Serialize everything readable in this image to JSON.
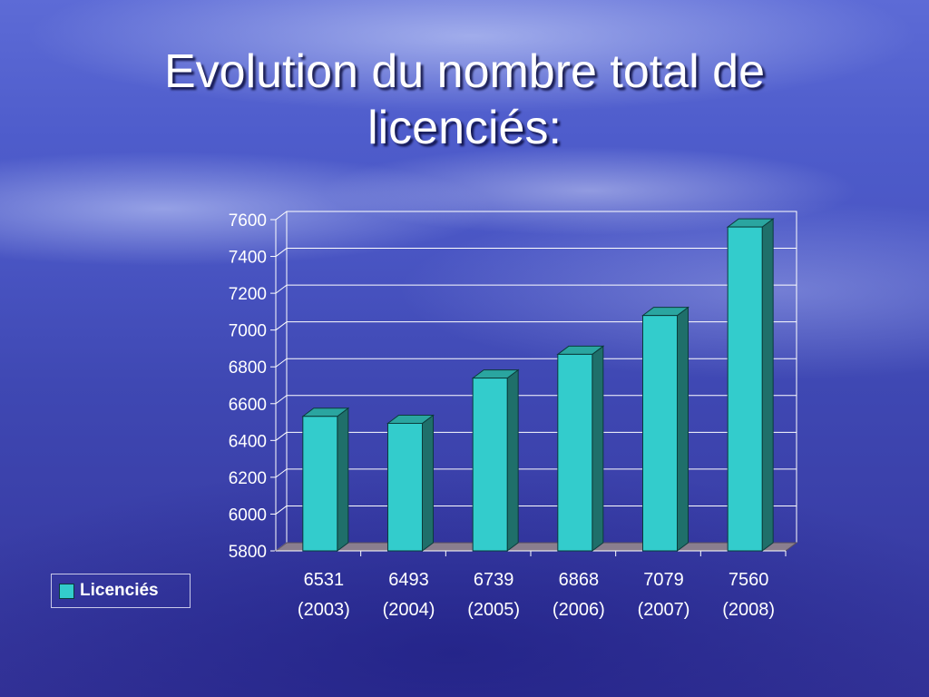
{
  "slide": {
    "title_line1": "Evolution du nombre total de",
    "title_line2": "licenciés:"
  },
  "chart_data": {
    "type": "bar",
    "categories": [
      "6531\n(2003)",
      "6493\n(2004)",
      "6739\n(2005)",
      "6868\n(2006)",
      "7079\n(2007)",
      "7560\n(2008)"
    ],
    "category_lines": [
      [
        "6531",
        "(2003)"
      ],
      [
        "6493",
        "(2004)"
      ],
      [
        "6739",
        "(2005)"
      ],
      [
        "6868",
        "(2006)"
      ],
      [
        "7079",
        "(2007)"
      ],
      [
        "7560",
        "(2008)"
      ]
    ],
    "series": [
      {
        "name": "Licenciés",
        "values": [
          6531,
          6493,
          6739,
          6868,
          7079,
          7560
        ]
      }
    ],
    "ylim": [
      5800,
      7600
    ],
    "yticks": [
      7600,
      7400,
      7200,
      7000,
      6800,
      6600,
      6400,
      6200,
      6000,
      5800
    ],
    "grid": true,
    "legend_position": "left",
    "bar_style": "3d-column",
    "colors": {
      "bar_front": "#33cccc",
      "bar_side": "#1f6f6a",
      "bar_top": "#2aa5a0",
      "floor": "#8a7e8e",
      "grid": "#ffffff",
      "text": "#ffffff"
    }
  },
  "legend": {
    "label": "Licenciés"
  }
}
